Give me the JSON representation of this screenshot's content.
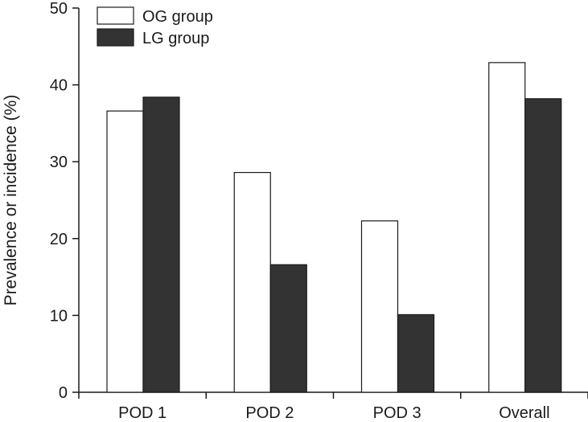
{
  "chart_data": {
    "type": "bar",
    "title": "",
    "xlabel": "",
    "ylabel": "Prevalence or incidence (%)",
    "ylim": [
      0,
      50
    ],
    "yticks": [
      0,
      10,
      20,
      30,
      40,
      50
    ],
    "categories": [
      "POD 1",
      "POD 2",
      "POD 3",
      "Overall"
    ],
    "series": [
      {
        "name": "OG group",
        "values": [
          36.6,
          28.6,
          22.3,
          42.9
        ],
        "color": "#ffffff",
        "stroke": "#1a1a1a"
      },
      {
        "name": "LG group",
        "values": [
          38.4,
          16.6,
          10.1,
          38.2
        ],
        "color": "#333333",
        "stroke": "#1a1a1a"
      }
    ],
    "legend_position": "top-left",
    "grid": false
  }
}
